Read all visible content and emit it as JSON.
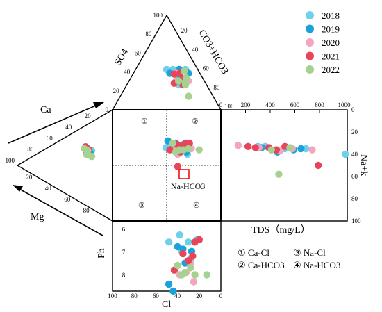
{
  "chart_data": {
    "type": "scatter",
    "legend": [
      {
        "label": "2018",
        "color": "#6fd0ec"
      },
      {
        "label": "2019",
        "color": "#1aa2db"
      },
      {
        "label": "2020",
        "color": "#f4a6c0"
      },
      {
        "label": "2021",
        "color": "#e8445a"
      },
      {
        "label": "2022",
        "color": "#a6d291"
      }
    ],
    "labels": {
      "so4": "SO4",
      "co3hco3": "CO3+HCO3",
      "ca": "Ca",
      "mg": "Mg",
      "nak": "Na+k",
      "tds": "TDS（mg/L）",
      "ph": "Ph",
      "cl": "Cl",
      "highlight": "Na-HCO3"
    },
    "quadrants": [
      "①",
      "②",
      "③",
      "④"
    ],
    "type_legend": [
      {
        "mark": "①",
        "text": "Ca-Cl"
      },
      {
        "mark": "③",
        "text": "Na-Cl"
      },
      {
        "mark": "②",
        "text": "Ca-HCO3"
      },
      {
        "mark": "④",
        "text": "Na-HCO3"
      }
    ],
    "ticks": {
      "top_triangle_left": [
        "100",
        "80",
        "60",
        "40",
        "20",
        "0"
      ],
      "top_triangle_right": [
        "20",
        "40",
        "60",
        "80",
        "100"
      ],
      "left_triangle": [
        "100",
        "80",
        "60",
        "40",
        "20",
        "0",
        "20",
        "40",
        "60",
        "80"
      ],
      "tds_x": [
        "0",
        "200",
        "400",
        "600",
        "800",
        "1000"
      ],
      "nak_y": [
        "0",
        "20",
        "40",
        "60",
        "80",
        "100"
      ],
      "ph_y": [
        "6",
        "7",
        "8"
      ],
      "cl_x": [
        "100",
        "80",
        "60",
        "40",
        "20",
        "0"
      ]
    },
    "series": [
      {
        "name": "2018",
        "square": [
          [
            30,
            31
          ],
          [
            40,
            32
          ],
          [
            28,
            36
          ],
          [
            35,
            35
          ],
          [
            48,
            34
          ],
          [
            26,
            40
          ]
        ],
        "tds": [
          [
            300,
            33
          ],
          [
            360,
            33
          ],
          [
            520,
            35
          ],
          [
            690,
            35
          ],
          [
            1010,
            40
          ]
        ],
        "ph": [
          [
            38,
            6.3
          ],
          [
            22,
            6.5
          ],
          [
            30,
            6.6
          ],
          [
            48,
            6.6
          ],
          [
            36,
            7.0
          ],
          [
            28,
            7.3
          ]
        ],
        "top": [
          [
            40,
            30,
            30
          ],
          [
            30,
            40,
            30
          ],
          [
            25,
            25,
            50
          ],
          [
            45,
            25,
            30
          ],
          [
            35,
            35,
            30
          ],
          [
            30,
            30,
            40
          ]
        ],
        "left": [
          [
            50,
            40
          ],
          [
            45,
            40
          ],
          [
            55,
            40
          ]
        ]
      },
      {
        "name": "2019",
        "square": [
          [
            38,
            30
          ],
          [
            33,
            32
          ],
          [
            46,
            28
          ],
          [
            27,
            38
          ],
          [
            41,
            34
          ],
          [
            31,
            37
          ]
        ],
        "tds": [
          [
            330,
            34
          ],
          [
            410,
            36
          ],
          [
            460,
            38
          ],
          [
            590,
            36
          ],
          [
            650,
            35
          ]
        ],
        "ph": [
          [
            40,
            6.8
          ],
          [
            35,
            6.9
          ],
          [
            27,
            7.0
          ],
          [
            33,
            7.5
          ],
          [
            48,
            8.4
          ],
          [
            44,
            8.7
          ]
        ],
        "top": [
          [
            35,
            35,
            30
          ],
          [
            30,
            30,
            40
          ],
          [
            40,
            25,
            35
          ],
          [
            25,
            40,
            35
          ]
        ],
        "left": [
          [
            52,
            38
          ],
          [
            48,
            42
          ]
        ]
      },
      {
        "name": "2020",
        "square": [
          [
            29,
            34
          ],
          [
            34,
            34
          ],
          [
            26,
            32
          ],
          [
            40,
            36
          ],
          [
            36,
            40
          ],
          [
            22,
            35
          ]
        ],
        "tds": [
          [
            140,
            32
          ],
          [
            310,
            34
          ],
          [
            480,
            37
          ],
          [
            580,
            35
          ],
          [
            740,
            36
          ]
        ],
        "ph": [
          [
            28,
            7.5
          ],
          [
            32,
            7.9
          ],
          [
            38,
            8.0
          ],
          [
            25,
            8.3
          ]
        ],
        "top": [
          [
            25,
            30,
            45
          ],
          [
            30,
            25,
            45
          ],
          [
            20,
            35,
            45
          ],
          [
            35,
            30,
            35
          ]
        ],
        "left": [
          [
            58,
            38
          ],
          [
            52,
            43
          ]
        ]
      },
      {
        "name": "2021",
        "square": [
          [
            32,
            33
          ],
          [
            37,
            31
          ],
          [
            28,
            30
          ],
          [
            44,
            36
          ],
          [
            33,
            38
          ],
          [
            24,
            30
          ],
          [
            36,
            51
          ]
        ],
        "tds": [
          [
            220,
            33
          ],
          [
            280,
            34
          ],
          [
            390,
            34
          ],
          [
            450,
            36
          ],
          [
            520,
            33
          ],
          [
            790,
            50
          ]
        ],
        "ph": [
          [
            20,
            6.5
          ],
          [
            24,
            6.6
          ],
          [
            35,
            7.1
          ],
          [
            30,
            7.4
          ],
          [
            43,
            7.8
          ],
          [
            26,
            7.2
          ]
        ],
        "top": [
          [
            32,
            33,
            35
          ],
          [
            26,
            32,
            42
          ],
          [
            36,
            28,
            36
          ],
          [
            22,
            28,
            50
          ],
          [
            30,
            22,
            48
          ]
        ],
        "left": [
          [
            50,
            39
          ],
          [
            56,
            36
          ],
          [
            54,
            43
          ]
        ]
      },
      {
        "name": "2022",
        "square": [
          [
            25,
            35
          ],
          [
            30,
            36
          ],
          [
            34,
            36
          ],
          [
            38,
            38
          ],
          [
            14,
            36
          ],
          [
            41,
            30
          ]
        ],
        "tds": [
          [
            410,
            36
          ],
          [
            470,
            58
          ],
          [
            560,
            34
          ]
        ],
        "ph": [
          [
            13,
            8.0
          ],
          [
            24,
            8.0
          ],
          [
            33,
            7.9
          ],
          [
            36,
            8.0
          ],
          [
            28,
            7.7
          ],
          [
            40,
            7.6
          ]
        ],
        "top": [
          [
            20,
            30,
            50
          ],
          [
            24,
            35,
            41
          ],
          [
            30,
            38,
            32
          ],
          [
            10,
            25,
            65
          ],
          [
            28,
            27,
            45
          ],
          [
            22,
            32,
            46
          ]
        ],
        "left": [
          [
            58,
            38
          ],
          [
            52,
            40
          ],
          [
            54,
            44
          ],
          [
            45,
            46
          ]
        ]
      }
    ]
  }
}
